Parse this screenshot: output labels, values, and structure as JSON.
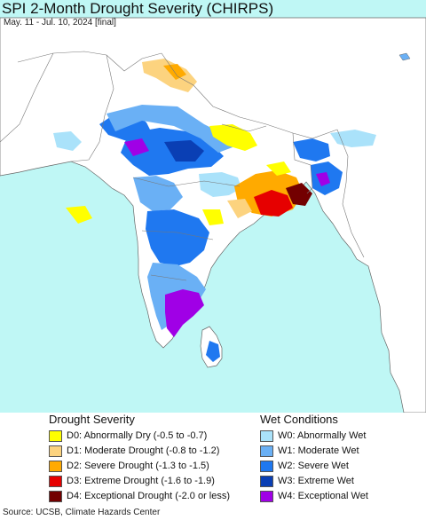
{
  "header": {
    "title": "SPI 2-Month Drought Severity (CHIRPS)",
    "subtitle": "May. 11 - Jul. 10, 2024 [final]"
  },
  "legend": {
    "drought": {
      "heading": "Drought Severity",
      "items": [
        {
          "label": "D0: Abnormally Dry (-0.5 to -0.7)",
          "color": "#ffff00"
        },
        {
          "label": "D1: Moderate Drought (-0.8 to -1.2)",
          "color": "#fcd37f"
        },
        {
          "label": "D2: Severe Drought (-1.3 to -1.5)",
          "color": "#ffaa00"
        },
        {
          "label": "D3: Extreme Drought (-1.6 to -1.9)",
          "color": "#e60000"
        },
        {
          "label": "D4: Exceptional Drought (-2.0 or less)",
          "color": "#730000"
        }
      ]
    },
    "wet": {
      "heading": "Wet Conditions",
      "items": [
        {
          "label": "W0: Abnormally Wet",
          "color": "#aae2fa"
        },
        {
          "label": "W1: Moderate Wet",
          "color": "#6ab0f5"
        },
        {
          "label": "W2: Severe Wet",
          "color": "#1f78f0"
        },
        {
          "label": "W3: Extreme Wet",
          "color": "#0a3fb4"
        },
        {
          "label": "W4: Exceptional Wet",
          "color": "#a000e6"
        }
      ]
    }
  },
  "map": {
    "colors": {
      "water": "#bff7f5",
      "land": "#ffffff",
      "border": "#666666"
    }
  },
  "footer": {
    "source": "Source: UCSB, Climate Hazards Center"
  }
}
